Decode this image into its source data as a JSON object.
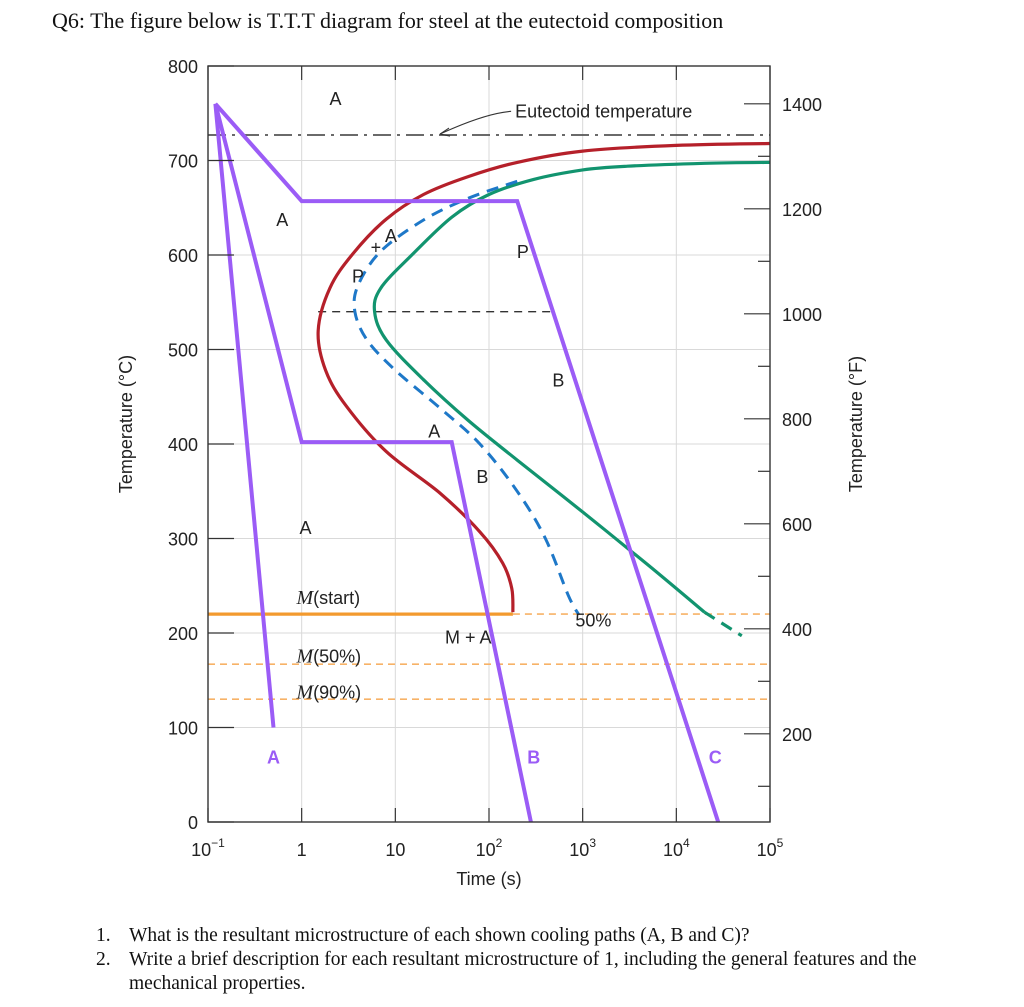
{
  "heading": "Q6: The figure below is T.T.T diagram for steel at the eutectoid composition",
  "questions": [
    {
      "num": "1.",
      "text": "What is the resultant microstructure of each shown cooling paths (A, B and C)?"
    },
    {
      "num": "2.",
      "text": "Write a brief description for each resultant microstructure of 1, including the general features and the mechanical properties."
    }
  ],
  "chart_data": {
    "type": "line",
    "xlabel": "Time (s)",
    "ylabel": "Temperature (°C)",
    "y2label": "Temperature (°F)",
    "xscale": "log",
    "xlim": [
      0.1,
      100000
    ],
    "ylim": [
      0,
      800
    ],
    "y2lim": [
      32,
      1472
    ],
    "x_ticks": [
      {
        "value": 0.1,
        "base": "10",
        "exp": "−1"
      },
      {
        "value": 1,
        "base": "1",
        "exp": ""
      },
      {
        "value": 10,
        "base": "10",
        "exp": ""
      },
      {
        "value": 100,
        "base": "10",
        "exp": "2"
      },
      {
        "value": 1000,
        "base": "10",
        "exp": "3"
      },
      {
        "value": 10000,
        "base": "10",
        "exp": "4"
      },
      {
        "value": 100000,
        "base": "10",
        "exp": "5"
      }
    ],
    "y_ticks": [
      0,
      100,
      200,
      300,
      400,
      500,
      600,
      700,
      800
    ],
    "y2_ticks": [
      200,
      400,
      600,
      800,
      1000,
      1200,
      1400
    ],
    "grid": true,
    "colors": {
      "start_curve": "#b5202a",
      "finish_curve": "#12946f",
      "fifty_curve": "#1e78c8",
      "path": "#9b5cf6",
      "ms_line": "#f39a2e",
      "m_lines": "#f7b267",
      "axis": "#333333",
      "grid": "#d9d9d9",
      "text": "#222222"
    },
    "reference_lines": [
      {
        "name": "eutectoid-line",
        "y": 727,
        "style": "dashdot",
        "color": "#555555",
        "label": "Eutectoid temperature",
        "label_x": 190,
        "label_y": 752,
        "arrow_x": 30,
        "arrow_y": 728
      },
      {
        "name": "dashed-540-line",
        "y": 540,
        "x_range": [
          1.5,
          500
        ],
        "style": "dashed",
        "color": "#333333"
      },
      {
        "name": "m-start-line",
        "y": 220,
        "x_range": [
          0.1,
          180
        ],
        "style": "solid",
        "color": "#f39a2e",
        "label": "M(start)",
        "label_x": 0.88,
        "label_y": 237,
        "ext_range": [
          180,
          100000
        ]
      },
      {
        "name": "m50-line",
        "y": 167,
        "x_range": [
          0.1,
          100000
        ],
        "style": "dashed",
        "color": "#f7b267",
        "label": "M(50%)",
        "label_x": 0.88,
        "label_y": 175
      },
      {
        "name": "m90-line",
        "y": 130,
        "x_range": [
          0.1,
          100000
        ],
        "style": "dashed",
        "color": "#f7b267",
        "label": "M(90%)",
        "label_x": 0.88,
        "label_y": 137
      }
    ],
    "series": [
      {
        "name": "transformation-start",
        "color": "#b5202a",
        "style": "solid",
        "points": [
          [
            100000,
            718
          ],
          [
            10000,
            716
          ],
          [
            1000,
            710
          ],
          [
            200,
            698
          ],
          [
            60,
            683
          ],
          [
            20,
            664
          ],
          [
            8,
            638
          ],
          [
            3.5,
            601
          ],
          [
            2,
            565
          ],
          [
            1.5,
            520
          ],
          [
            1.8,
            478
          ],
          [
            3,
            440
          ],
          [
            8,
            392
          ],
          [
            30,
            348
          ],
          [
            80,
            307
          ],
          [
            140,
            274
          ],
          [
            175,
            247
          ],
          [
            180,
            222
          ]
        ]
      },
      {
        "name": "transformation-finish",
        "color": "#12946f",
        "style": "solid",
        "points": [
          [
            100000,
            698
          ],
          [
            20000,
            697
          ],
          [
            3000,
            694
          ],
          [
            1000,
            690
          ],
          [
            300,
            680
          ],
          [
            100,
            664
          ],
          [
            40,
            640
          ],
          [
            15,
            600
          ],
          [
            7,
            565
          ],
          [
            6,
            540
          ],
          [
            8,
            510
          ],
          [
            20,
            468
          ],
          [
            60,
            425
          ],
          [
            200,
            383
          ],
          [
            1000,
            328
          ],
          [
            5000,
            272
          ],
          [
            20000,
            222
          ]
        ],
        "tail": [
          [
            20000,
            222
          ],
          [
            50000,
            197
          ]
        ]
      },
      {
        "name": "fifty-percent",
        "color": "#1e78c8",
        "style": "dashed",
        "points": [
          [
            200,
            678
          ],
          [
            60,
            660
          ],
          [
            20,
            637
          ],
          [
            7,
            604
          ],
          [
            4,
            568
          ],
          [
            3.7,
            540
          ],
          [
            5,
            510
          ],
          [
            10,
            478
          ],
          [
            30,
            438
          ],
          [
            80,
            400
          ],
          [
            200,
            350
          ],
          [
            400,
            300
          ],
          [
            700,
            240
          ],
          [
            900,
            220
          ]
        ]
      }
    ],
    "cooling_paths": [
      {
        "name": "path-a",
        "label": "A",
        "color": "#9b5cf6",
        "points": [
          [
            0.12,
            760
          ],
          [
            0.5,
            100
          ]
        ]
      },
      {
        "name": "path-b",
        "label": "B",
        "color": "#9b5cf6",
        "points": [
          [
            0.12,
            760
          ],
          [
            1,
            402
          ],
          [
            40,
            402
          ],
          [
            280,
            0
          ]
        ]
      },
      {
        "name": "path-c",
        "label": "C",
        "color": "#9b5cf6",
        "points": [
          [
            0.12,
            760
          ],
          [
            1,
            657
          ],
          [
            200,
            657
          ],
          [
            28000,
            0
          ]
        ]
      }
    ],
    "annotations": [
      {
        "name": "label-a-top",
        "text": "A",
        "x": 2.3,
        "y": 765,
        "color": "#222222"
      },
      {
        "name": "label-a-path",
        "text": "A",
        "x": 0.62,
        "y": 637,
        "color": "#222222"
      },
      {
        "name": "label-a-nose",
        "text": "A",
        "x": 9,
        "y": 620,
        "color": "#222222"
      },
      {
        "name": "label-plus-upper",
        "text": "+",
        "x": 6.2,
        "y": 608,
        "color": "#222222"
      },
      {
        "name": "label-p-upper",
        "text": "P",
        "x": 4,
        "y": 577,
        "color": "#222222"
      },
      {
        "name": "label-p-right",
        "text": "P",
        "x": 230,
        "y": 603,
        "color": "#222222"
      },
      {
        "name": "label-b-region",
        "text": "B",
        "x": 550,
        "y": 467,
        "color": "#222222"
      },
      {
        "name": "label-a-lower",
        "text": "A",
        "x": 26,
        "y": 413,
        "color": "#222222"
      },
      {
        "name": "label-b-lower",
        "text": "B",
        "x": 85,
        "y": 365,
        "color": "#222222"
      },
      {
        "name": "label-a-bottom",
        "text": "A",
        "x": 1.1,
        "y": 311,
        "color": "#222222"
      },
      {
        "name": "label-m-plus-a",
        "text": "M + A",
        "x": 60,
        "y": 195,
        "color": "#222222"
      },
      {
        "name": "label-fifty",
        "text": "50%",
        "x": 1300,
        "y": 213,
        "color": "#222222"
      },
      {
        "name": "label-path-a-end",
        "text": "A",
        "x": 0.5,
        "y": 68,
        "color": "#9b5cf6"
      },
      {
        "name": "label-path-b-end",
        "text": "B",
        "x": 300,
        "y": 68,
        "color": "#9b5cf6"
      },
      {
        "name": "label-path-c-end",
        "text": "C",
        "x": 26000,
        "y": 68,
        "color": "#9b5cf6"
      }
    ]
  }
}
